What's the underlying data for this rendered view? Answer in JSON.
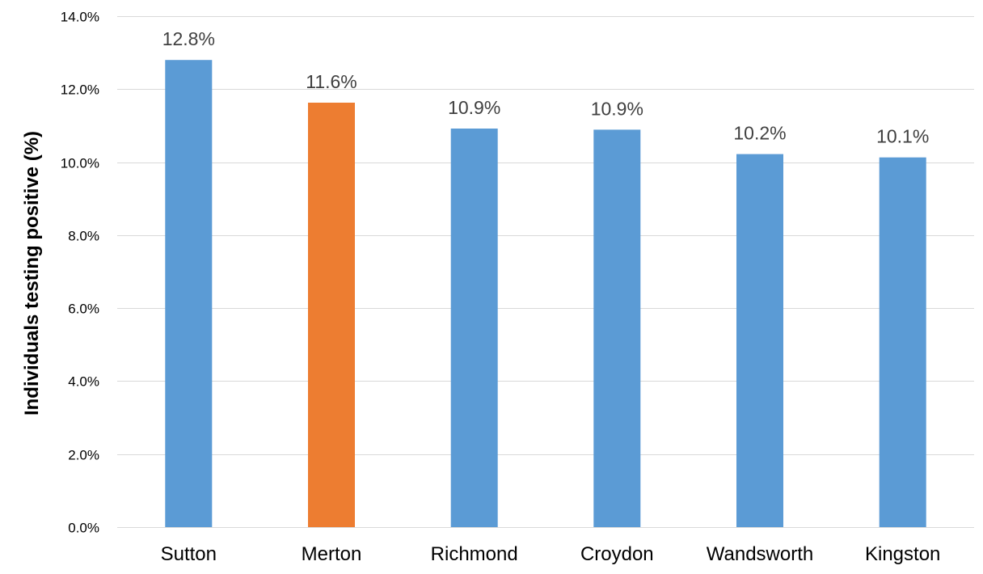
{
  "chart_data": {
    "type": "bar",
    "title": "",
    "xlabel": "",
    "ylabel": "Individuals testing positive (%)",
    "categories": [
      "Sutton",
      "Merton",
      "Richmond",
      "Croydon",
      "Wandsworth",
      "Kingston"
    ],
    "values": [
      12.8,
      11.63,
      10.92,
      10.89,
      10.22,
      10.13
    ],
    "data_labels": [
      "12.8%",
      "11.6%",
      "10.9%",
      "10.9%",
      "10.2%",
      "10.1%"
    ],
    "ylim": [
      0,
      14
    ],
    "yticks": [
      0,
      2,
      4,
      6,
      8,
      10,
      12,
      14
    ],
    "ytick_labels": [
      "0.0%",
      "2.0%",
      "4.0%",
      "6.0%",
      "8.0%",
      "10.0%",
      "12.0%",
      "14.0%"
    ],
    "grid": true,
    "legend": "none",
    "colors": {
      "default_bar": "#5b9bd5",
      "highlight_bar": "#ed7d31",
      "gridline": "#d9d9d9"
    },
    "highlight_category": "Merton"
  }
}
